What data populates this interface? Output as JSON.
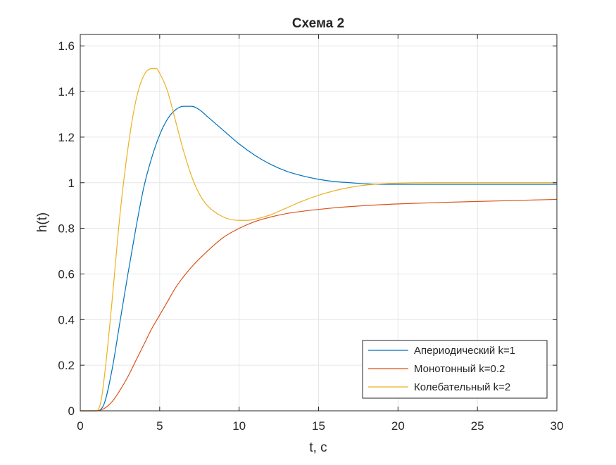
{
  "chart_data": {
    "type": "line",
    "title": "Схема 2",
    "xlabel": "t, c",
    "ylabel": "h(t)",
    "xlim": [
      0,
      30
    ],
    "ylim": [
      0,
      1.65
    ],
    "x_ticks": [
      0,
      5,
      10,
      15,
      20,
      25,
      30
    ],
    "y_ticks": [
      0,
      0.2,
      0.4,
      0.6,
      0.8,
      1,
      1.2,
      1.4,
      1.6
    ],
    "x_tick_labels": [
      "0",
      "5",
      "10",
      "15",
      "20",
      "25",
      "30"
    ],
    "y_tick_labels": [
      "0",
      "0.2",
      "0.4",
      "0.6",
      "0.8",
      "1",
      "1.2",
      "1.4",
      "1.6"
    ],
    "grid": true,
    "legend_position": "bottom-right",
    "series": [
      {
        "name": "Апериодический k=1",
        "color": "#0072BD",
        "x": [
          0,
          1,
          1.5,
          2,
          2.5,
          3,
          3.5,
          4,
          4.5,
          5,
          5.5,
          6,
          6.5,
          7,
          7.5,
          8,
          9,
          10,
          11,
          12,
          13,
          14,
          15,
          16,
          17,
          18,
          19,
          20,
          22,
          25,
          30
        ],
        "y": [
          0,
          0,
          0.03,
          0.18,
          0.39,
          0.6,
          0.8,
          0.98,
          1.11,
          1.21,
          1.28,
          1.32,
          1.335,
          1.335,
          1.32,
          1.29,
          1.23,
          1.17,
          1.12,
          1.08,
          1.05,
          1.03,
          1.015,
          1.005,
          1.0,
          0.995,
          0.993,
          0.993,
          0.993,
          0.993,
          0.993
        ]
      },
      {
        "name": "Монотонный k=0.2",
        "color": "#D95319",
        "x": [
          0,
          1,
          1.5,
          2,
          2.5,
          3,
          3.5,
          4,
          4.5,
          5,
          5.5,
          6,
          7,
          8,
          9,
          10,
          11,
          12,
          13,
          14,
          15,
          16,
          18,
          20,
          22,
          25,
          30
        ],
        "y": [
          0,
          0,
          0.01,
          0.04,
          0.09,
          0.15,
          0.22,
          0.29,
          0.36,
          0.42,
          0.48,
          0.54,
          0.63,
          0.7,
          0.76,
          0.8,
          0.83,
          0.85,
          0.865,
          0.875,
          0.883,
          0.89,
          0.9,
          0.907,
          0.912,
          0.918,
          0.927
        ]
      },
      {
        "name": "Колебательный k=2",
        "color": "#EDB120",
        "x": [
          0,
          1,
          1.3,
          1.6,
          2,
          2.5,
          3,
          3.5,
          4,
          4.5,
          4.8,
          5,
          5.5,
          6,
          6.5,
          7,
          7.5,
          8,
          9,
          10,
          10.5,
          11,
          12,
          13,
          14,
          15,
          16,
          17,
          18,
          19,
          20,
          22,
          25,
          30
        ],
        "y": [
          0,
          0,
          0.04,
          0.2,
          0.48,
          0.86,
          1.15,
          1.36,
          1.47,
          1.5,
          1.5,
          1.48,
          1.4,
          1.27,
          1.14,
          1.03,
          0.95,
          0.9,
          0.85,
          0.835,
          0.835,
          0.84,
          0.86,
          0.89,
          0.92,
          0.945,
          0.965,
          0.98,
          0.99,
          0.995,
          0.998,
          1.0,
          1.0,
          1.0
        ]
      }
    ]
  }
}
